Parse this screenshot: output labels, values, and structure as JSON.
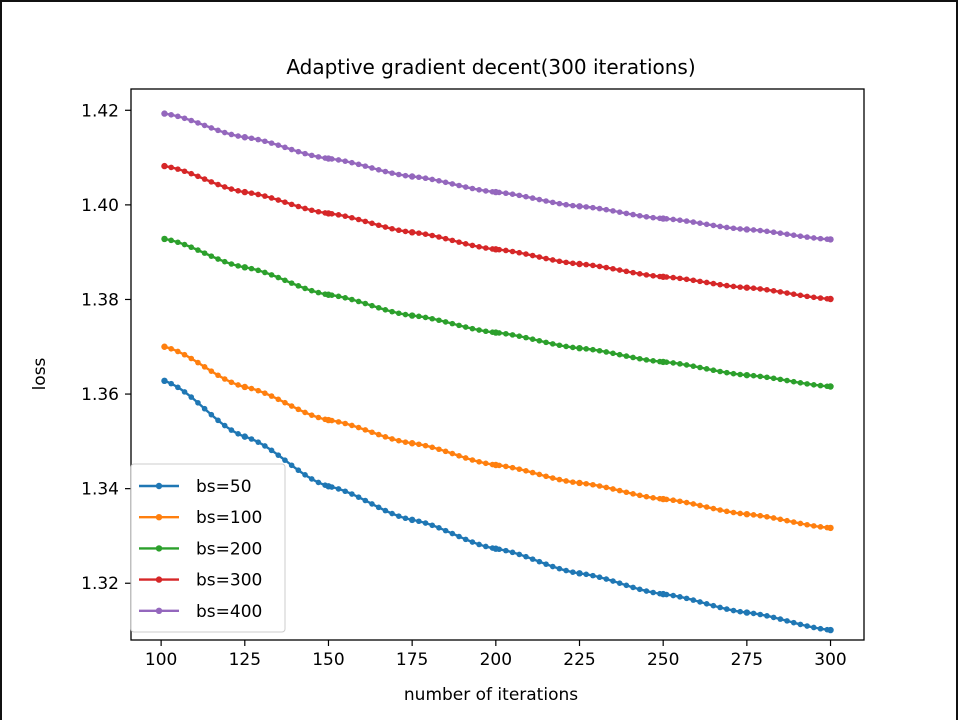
{
  "chart_data": {
    "type": "line",
    "title": "Adaptive gradient decent(300 iterations)",
    "xlabel": "number of iterations",
    "ylabel": "loss",
    "xlim": [
      91,
      310
    ],
    "ylim": [
      1.308,
      1.4245
    ],
    "x_ticks": [
      100,
      125,
      150,
      175,
      200,
      225,
      250,
      275,
      300
    ],
    "y_ticks": [
      1.32,
      1.34,
      1.36,
      1.38,
      1.4,
      1.42
    ],
    "y_tick_labels": [
      "1.32",
      "1.34",
      "1.36",
      "1.38",
      "1.40",
      "1.42"
    ],
    "grid": false,
    "legend_position": "lower-left",
    "x": [
      101,
      125,
      150,
      175,
      200,
      225,
      250,
      275,
      300
    ],
    "series": [
      {
        "name": "bs=50",
        "color": "#1f77b4",
        "values": [
          1.3628,
          1.351,
          1.3405,
          1.3334,
          1.3273,
          1.3221,
          1.3177,
          1.3138,
          1.3101
        ]
      },
      {
        "name": "bs=100",
        "color": "#ff7f0e",
        "values": [
          1.37,
          1.3615,
          1.3545,
          1.3496,
          1.345,
          1.3412,
          1.3378,
          1.3346,
          1.3317
        ]
      },
      {
        "name": "bs=200",
        "color": "#2ca02c",
        "values": [
          1.3928,
          1.3868,
          1.381,
          1.3766,
          1.373,
          1.3697,
          1.3668,
          1.364,
          1.3616
        ]
      },
      {
        "name": "bs=300",
        "color": "#d62728",
        "values": [
          1.4082,
          1.4027,
          1.3982,
          1.3942,
          1.3906,
          1.3875,
          1.3848,
          1.3825,
          1.3801
        ]
      },
      {
        "name": "bs=400",
        "color": "#9467bd",
        "values": [
          1.4193,
          1.4143,
          1.4098,
          1.406,
          1.4027,
          1.3997,
          1.3971,
          1.3948,
          1.3927
        ]
      }
    ]
  }
}
